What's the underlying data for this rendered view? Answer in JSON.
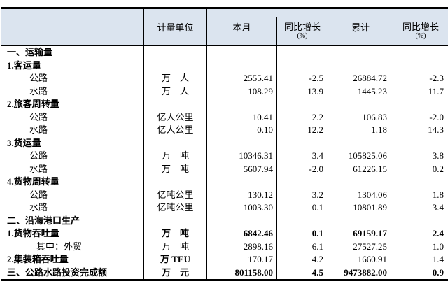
{
  "colors": {
    "header_bg": "#dbe4ef",
    "border": "#000000"
  },
  "table": {
    "header": {
      "col_label": "",
      "col_unit": "计量单位",
      "col_month": "本月",
      "col_month_growth": "同比增长",
      "col_month_growth_sub": "(%)",
      "col_cum": "累计",
      "col_cum_growth": "同比增长",
      "col_cum_growth_sub": "(%)"
    },
    "rows": [
      {
        "label": "一、运输量",
        "indent": 0,
        "bold": true,
        "unit": "",
        "month": "",
        "month_growth": "",
        "cum": "",
        "cum_growth": ""
      },
      {
        "label": "1.客运量",
        "indent": 0,
        "bold": true,
        "unit": "",
        "month": "",
        "month_growth": "",
        "cum": "",
        "cum_growth": ""
      },
      {
        "label": "公路",
        "indent": 1,
        "unit": "万　人",
        "month": "2555.41",
        "month_growth": "-2.5",
        "cum": "26884.72",
        "cum_growth": "-2.3"
      },
      {
        "label": "水路",
        "indent": 1,
        "unit": "万　人",
        "month": "108.29",
        "month_growth": "13.9",
        "cum": "1445.23",
        "cum_growth": "11.7"
      },
      {
        "label": "2.旅客周转量",
        "indent": 0,
        "bold": true,
        "unit": "",
        "month": "",
        "month_growth": "",
        "cum": "",
        "cum_growth": ""
      },
      {
        "label": "公路",
        "indent": 1,
        "unit": "亿人公里",
        "month": "10.41",
        "month_growth": "2.2",
        "cum": "106.83",
        "cum_growth": "-2.0"
      },
      {
        "label": "水路",
        "indent": 1,
        "unit": "亿人公里",
        "month": "0.10",
        "month_growth": "12.2",
        "cum": "1.18",
        "cum_growth": "14.3"
      },
      {
        "label": "3.货运量",
        "indent": 0,
        "bold": true,
        "unit": "",
        "month": "",
        "month_growth": "",
        "cum": "",
        "cum_growth": ""
      },
      {
        "label": "公路",
        "indent": 1,
        "unit": "万　吨",
        "month": "10346.31",
        "month_growth": "3.4",
        "cum": "105825.06",
        "cum_growth": "3.8"
      },
      {
        "label": "水路",
        "indent": 1,
        "unit": "万　吨",
        "month": "5607.94",
        "month_growth": "-2.0",
        "cum": "61226.15",
        "cum_growth": "0.2"
      },
      {
        "label": "4.货物周转量",
        "indent": 0,
        "bold": true,
        "unit": "",
        "month": "",
        "month_growth": "",
        "cum": "",
        "cum_growth": ""
      },
      {
        "label": "公路",
        "indent": 1,
        "unit": "亿吨公里",
        "month": "130.12",
        "month_growth": "3.2",
        "cum": "1304.06",
        "cum_growth": "1.8"
      },
      {
        "label": "水路",
        "indent": 1,
        "unit": "亿吨公里",
        "month": "1003.30",
        "month_growth": "0.1",
        "cum": "10801.89",
        "cum_growth": "3.4"
      },
      {
        "label": "二、沿海港口生产",
        "indent": 0,
        "bold": true,
        "unit": "",
        "month": "",
        "month_growth": "",
        "cum": "",
        "cum_growth": ""
      },
      {
        "label": "1.货物吞吐量",
        "indent": 0,
        "bold": true,
        "unit_bold": true,
        "values_bold": true,
        "unit": "万　吨",
        "month": "6842.46",
        "month_growth": "0.1",
        "cum": "69159.17",
        "cum_growth": "2.4"
      },
      {
        "label": "其中：外贸",
        "indent": 2,
        "unit": "万　吨",
        "month": "2898.16",
        "month_growth": "6.1",
        "cum": "27527.25",
        "cum_growth": "1.0"
      },
      {
        "label": "2.集装箱吞吐量",
        "indent": 0,
        "bold": true,
        "unit_bold": true,
        "unit": "万 TEU",
        "month": "170.17",
        "month_growth": "4.2",
        "cum": "1660.91",
        "cum_growth": "1.4"
      },
      {
        "label": "三、公路水路投资完成额",
        "indent": 0,
        "bold": true,
        "unit_bold": true,
        "values_bold": true,
        "unit": "万　元",
        "month": "801158.00",
        "month_growth": "4.5",
        "cum": "9473882.00",
        "cum_growth": "0.9"
      }
    ]
  }
}
